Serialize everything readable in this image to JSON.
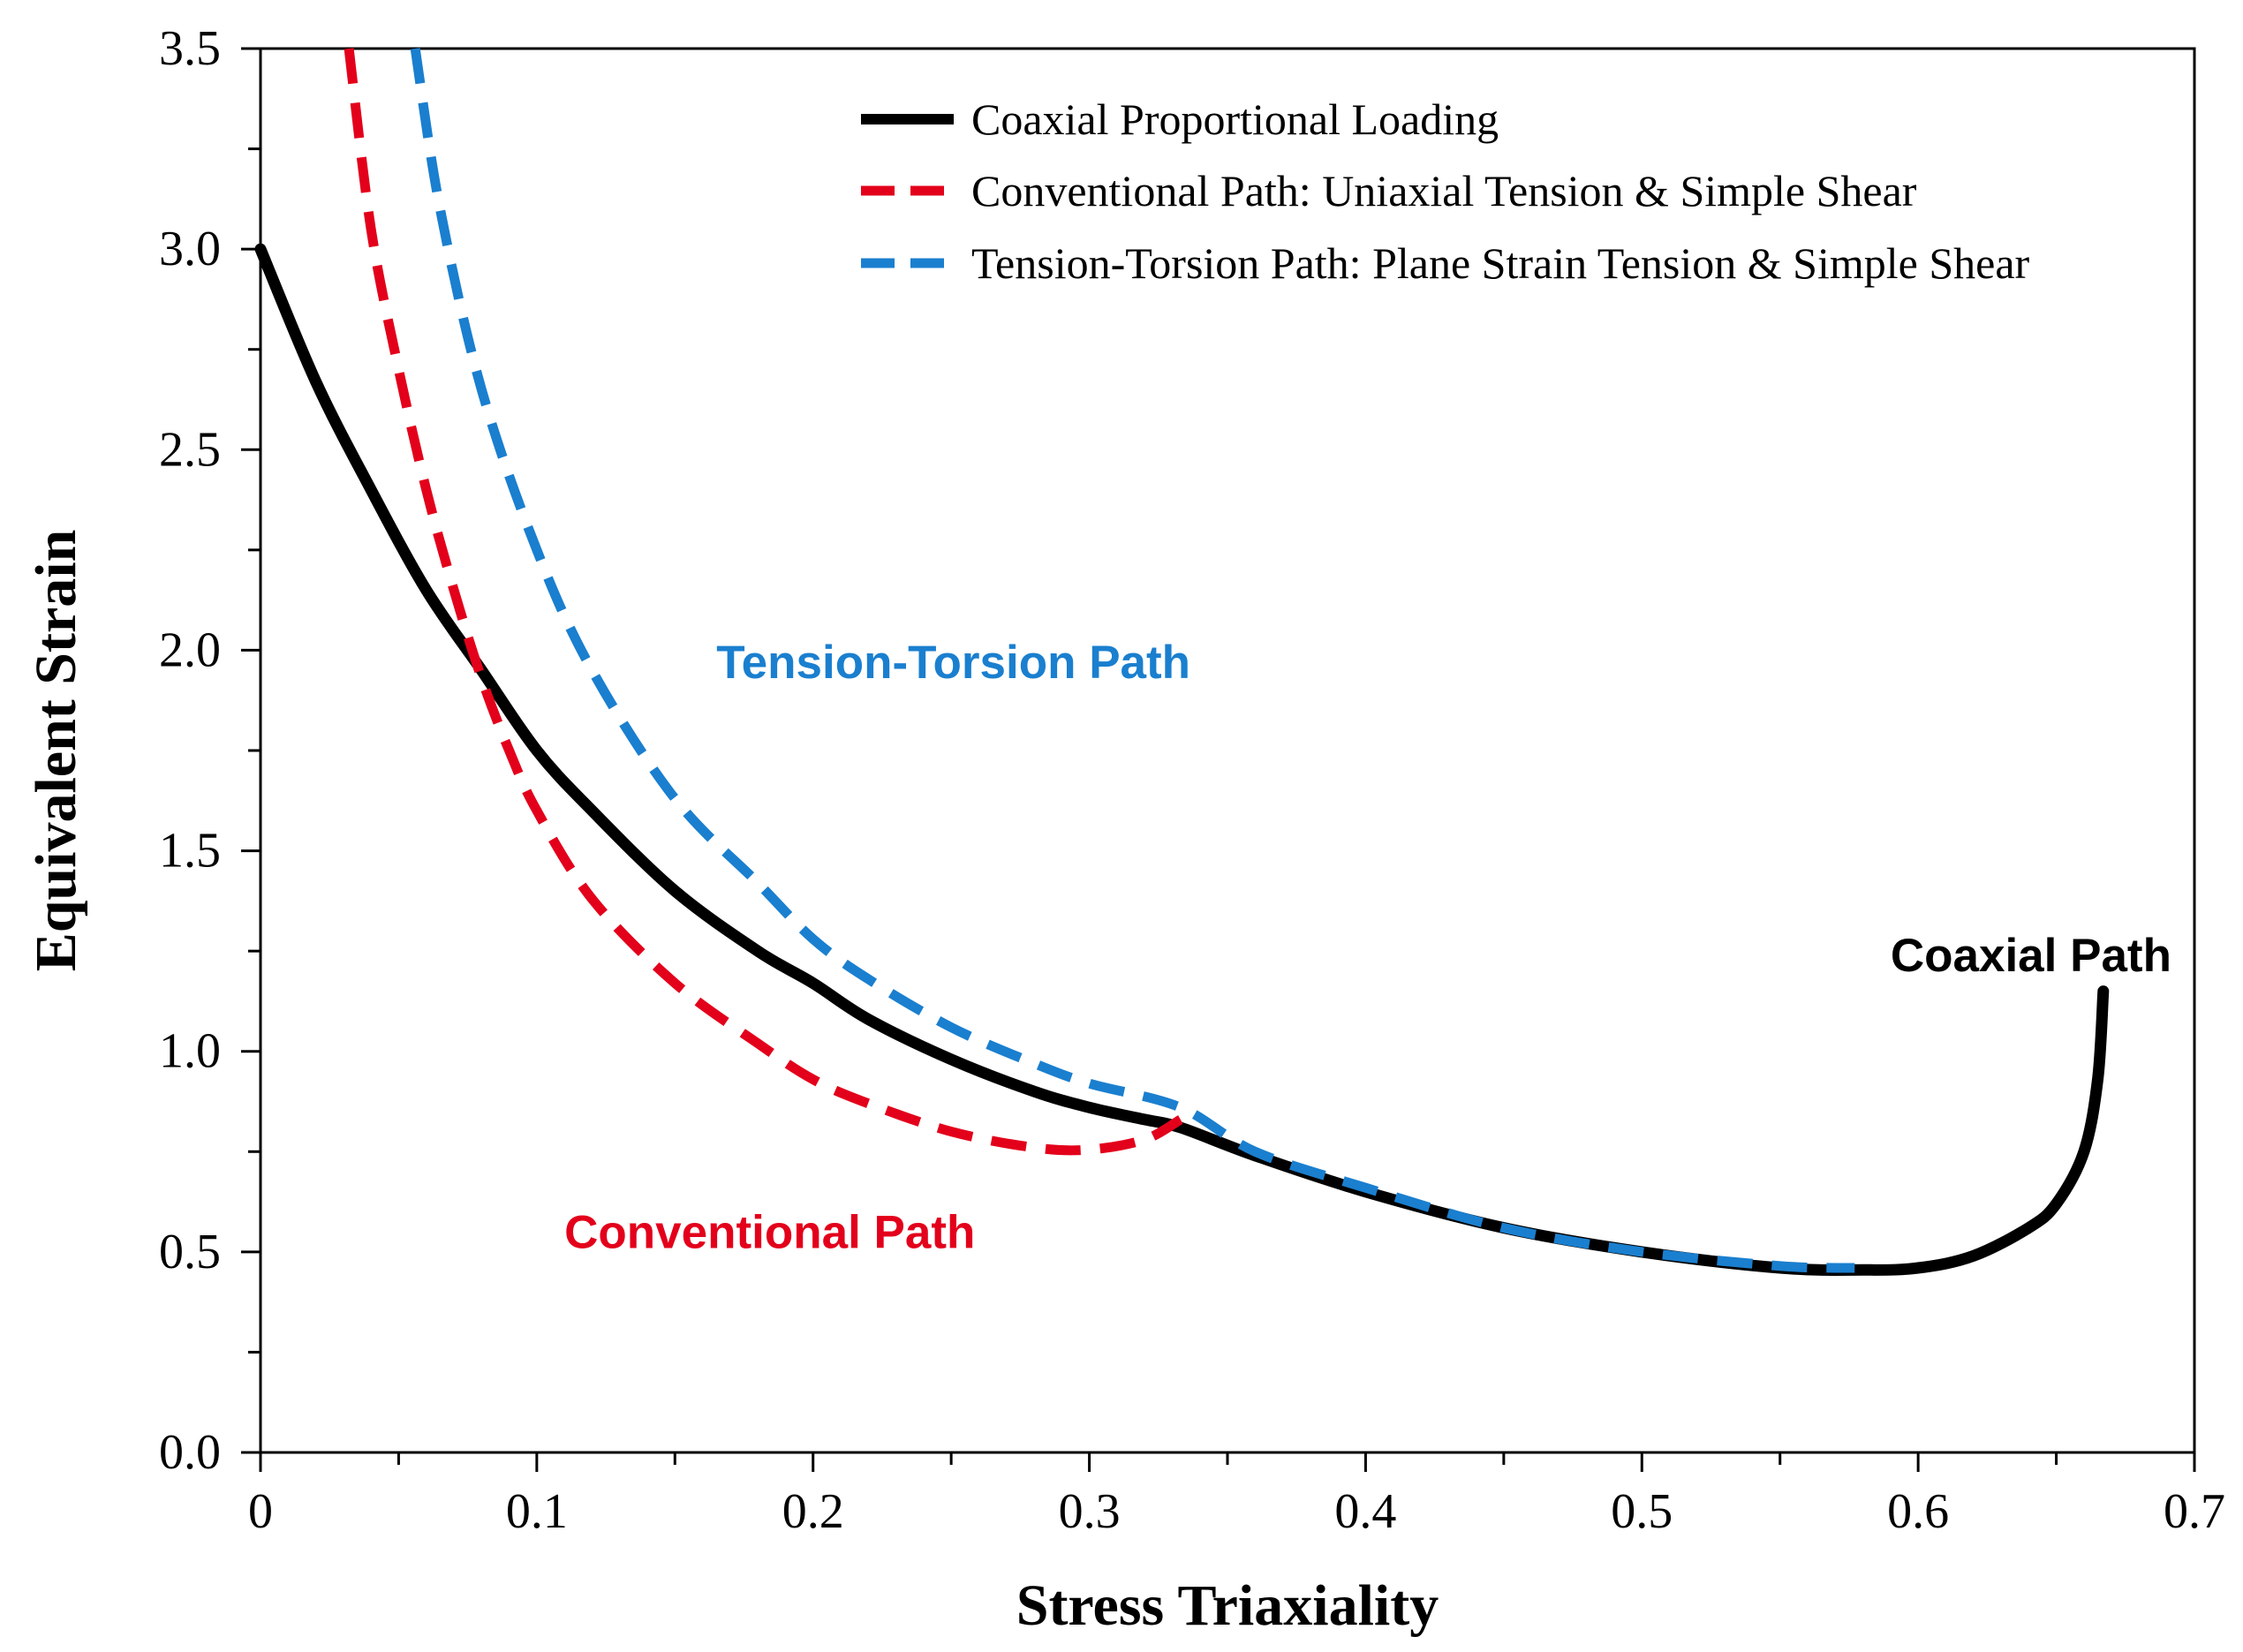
{
  "chart_data": {
    "type": "line",
    "title": "",
    "xlabel": "Stress Triaxiality",
    "ylabel": "Equivalent Strain",
    "xlim": [
      0,
      0.7
    ],
    "ylim": [
      0,
      3.5
    ],
    "x_ticks": [
      "0",
      "0.1",
      "0.2",
      "0.3",
      "0.4",
      "0.5",
      "0.6",
      "0.7"
    ],
    "y_ticks": [
      "0.0",
      "0.5",
      "1.0",
      "1.5",
      "2.0",
      "2.5",
      "3.0",
      "3.5"
    ],
    "grid": false,
    "legend_position": "top-right",
    "series": [
      {
        "name": "Coaxial Proportional Loading",
        "color": "#000000",
        "style": "solid",
        "x": [
          0,
          0.02,
          0.04,
          0.06,
          0.08,
          0.1,
          0.12,
          0.15,
          0.18,
          0.2,
          0.22,
          0.25,
          0.28,
          0.3,
          0.32,
          0.333,
          0.36,
          0.4,
          0.45,
          0.5,
          0.55,
          0.58,
          0.6,
          0.62,
          0.64,
          0.65,
          0.66,
          0.665,
          0.667
        ],
        "y": [
          3.0,
          2.67,
          2.4,
          2.15,
          1.95,
          1.75,
          1.6,
          1.4,
          1.25,
          1.17,
          1.08,
          0.98,
          0.9,
          0.86,
          0.83,
          0.81,
          0.74,
          0.65,
          0.56,
          0.5,
          0.46,
          0.455,
          0.46,
          0.49,
          0.56,
          0.62,
          0.75,
          0.93,
          1.15
        ]
      },
      {
        "name": "Conventional Path: Uniaxial Tension & Simple Shear",
        "color": "#e3001b",
        "style": "dashed",
        "x": [
          0.032,
          0.04,
          0.05,
          0.06,
          0.07,
          0.08,
          0.09,
          0.1,
          0.12,
          0.15,
          0.18,
          0.2,
          0.22,
          0.25,
          0.28,
          0.3,
          0.32,
          0.333
        ],
        "y": [
          3.5,
          3.05,
          2.7,
          2.4,
          2.15,
          1.93,
          1.75,
          1.6,
          1.38,
          1.17,
          1.02,
          0.93,
          0.87,
          0.8,
          0.76,
          0.755,
          0.78,
          0.83
        ]
      },
      {
        "name": "Tension-Torsion Path: Plane Strain Tension & Simple Shear",
        "color": "#1a7fcf",
        "style": "dashed",
        "x": [
          0.056,
          0.065,
          0.08,
          0.1,
          0.12,
          0.15,
          0.18,
          0.2,
          0.22,
          0.25,
          0.28,
          0.3,
          0.333,
          0.36,
          0.4,
          0.45,
          0.5,
          0.55,
          0.577
        ],
        "y": [
          3.5,
          3.1,
          2.65,
          2.25,
          1.95,
          1.63,
          1.42,
          1.28,
          1.18,
          1.06,
          0.97,
          0.92,
          0.86,
          0.75,
          0.66,
          0.56,
          0.5,
          0.465,
          0.46
        ]
      }
    ],
    "annotations": [
      {
        "text": "Tension-Torsion Path",
        "x": 0.165,
        "y": 1.93,
        "color": "#1a7fcf"
      },
      {
        "text": "Conventional Path",
        "x": 0.11,
        "y": 0.51,
        "color": "#e3001b"
      },
      {
        "text": "Coaxial Path",
        "x": 0.59,
        "y": 1.2,
        "color": "#000000"
      }
    ]
  }
}
